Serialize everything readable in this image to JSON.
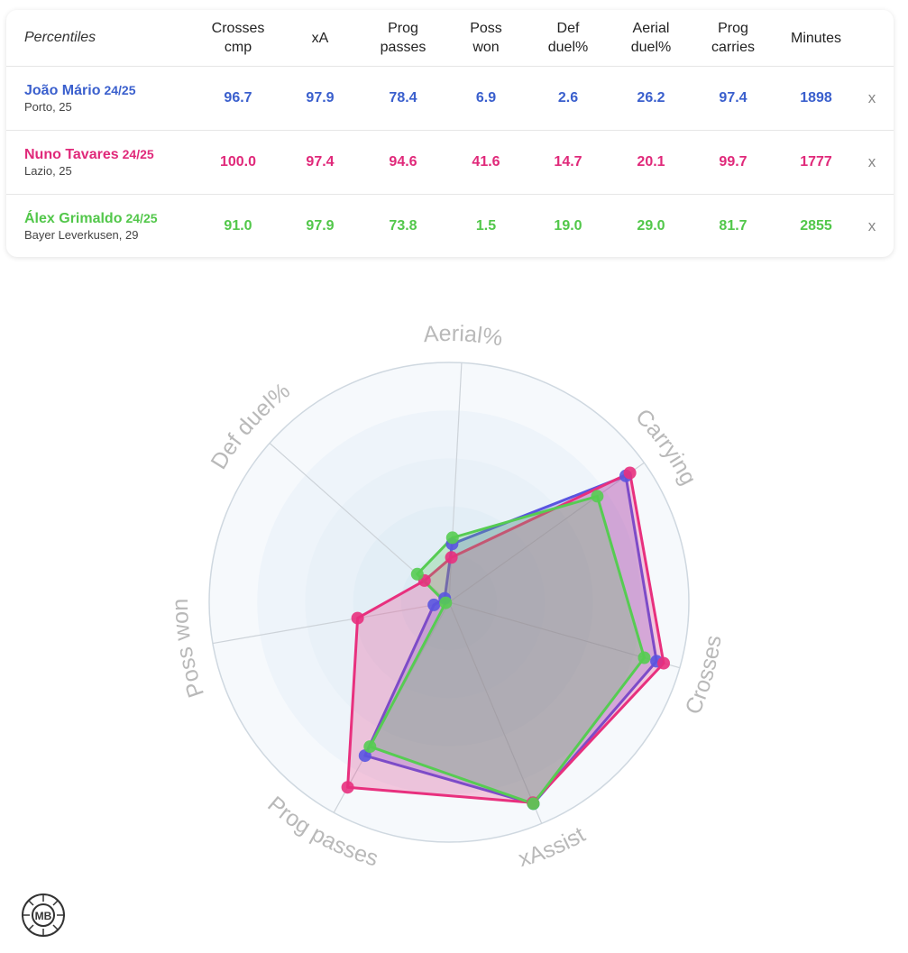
{
  "table": {
    "corner_label": "Percentiles",
    "columns": [
      "Crosses\ncmp",
      "xA",
      "Prog\npasses",
      "Poss\nwon",
      "Def\nduel%",
      "Aerial\nduel%",
      "Prog\ncarries",
      "Minutes"
    ],
    "remove_label": "x",
    "players": [
      {
        "name": "João Mário",
        "season": "24/25",
        "club": "Porto, 25",
        "color": "#3a5fcd",
        "values": [
          "96.7",
          "97.9",
          "78.4",
          "6.9",
          "2.6",
          "26.2",
          "97.4",
          "1898"
        ]
      },
      {
        "name": "Nuno Tavares",
        "season": "24/25",
        "club": "Lazio, 25",
        "color": "#e0297a",
        "values": [
          "100.0",
          "97.4",
          "94.6",
          "41.6",
          "14.7",
          "20.1",
          "99.7",
          "1777"
        ]
      },
      {
        "name": "Álex Grimaldo",
        "season": "24/25",
        "club": "Bayer Leverkusen, 29",
        "color": "#52c74a",
        "values": [
          "91.0",
          "97.9",
          "73.8",
          "1.5",
          "19.0",
          "29.0",
          "81.7",
          "2855"
        ]
      }
    ]
  },
  "chart_data": {
    "type": "radar",
    "axes": [
      "Aerial%",
      "Carrying",
      "Crosses",
      "xAssist",
      "Prog passes",
      "Poss won",
      "Def duel%"
    ],
    "range": [
      0,
      100
    ],
    "grid": true,
    "series": [
      {
        "name": "João Mário",
        "color": "#5a55e0",
        "values": [
          26.2,
          97.4,
          96.7,
          97.9,
          78.4,
          6.9,
          2.6
        ]
      },
      {
        "name": "Nuno Tavares",
        "color": "#e8307e",
        "values": [
          20.1,
          99.7,
          100.0,
          97.4,
          94.6,
          41.6,
          14.7
        ]
      },
      {
        "name": "Álex Grimaldo",
        "color": "#56cc52",
        "values": [
          29.0,
          81.7,
          91.0,
          97.9,
          73.8,
          1.5,
          19.0
        ]
      }
    ]
  },
  "logo": {
    "text": "MB"
  }
}
